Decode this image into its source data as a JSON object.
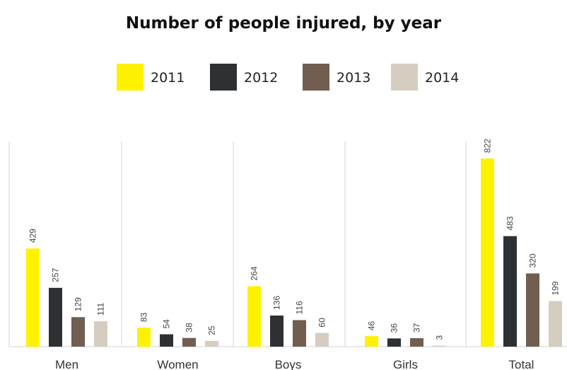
{
  "chart_data": {
    "type": "bar",
    "title": "Number of people injured, by year",
    "categories": [
      "Men",
      "Women",
      "Boys",
      "Girls",
      "Total"
    ],
    "series": [
      {
        "name": "2011",
        "color": "#fff200",
        "values": [
          429,
          83,
          264,
          46,
          822
        ]
      },
      {
        "name": "2012",
        "color": "#2e3133",
        "values": [
          257,
          54,
          136,
          36,
          483
        ]
      },
      {
        "name": "2013",
        "color": "#715e50",
        "values": [
          129,
          38,
          116,
          37,
          320
        ]
      },
      {
        "name": "2014",
        "color": "#d6cdc1",
        "values": [
          111,
          25,
          60,
          3,
          199
        ]
      }
    ],
    "ylim": [
      0,
      900
    ],
    "xlabel": "",
    "ylabel": "",
    "legend_position": "top-center",
    "grid": false,
    "group_dividers": true
  }
}
